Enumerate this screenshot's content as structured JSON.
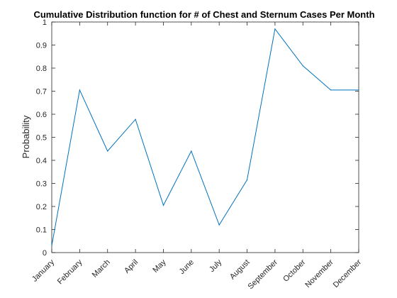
{
  "chart_data": {
    "type": "line",
    "title": "Cumulative Distribution function for # of Chest and Sternum Cases Per Month",
    "xlabel": "",
    "ylabel": "Probability",
    "categories": [
      "January",
      "February",
      "March",
      "April",
      "May",
      "June",
      "July",
      "August",
      "September",
      "October",
      "November",
      "December"
    ],
    "series": [
      {
        "values": [
          0.03,
          0.705,
          0.44,
          0.578,
          0.205,
          0.44,
          0.12,
          0.315,
          0.97,
          0.81,
          0.705,
          0.705
        ]
      }
    ],
    "ylim": [
      0,
      1
    ],
    "yticks": [
      0,
      0.1,
      0.2,
      0.3,
      0.4,
      0.5,
      0.6,
      0.7,
      0.8,
      0.9,
      1
    ],
    "ytick_labels": [
      "0",
      "0.1",
      "0.2",
      "0.3",
      "0.4",
      "0.5",
      "0.6",
      "0.7",
      "0.8",
      "0.9",
      "1"
    ],
    "grid": false,
    "legend": "none",
    "colors": {
      "line": "#0072BD",
      "axis": "#262626",
      "background": "#ffffff"
    }
  }
}
